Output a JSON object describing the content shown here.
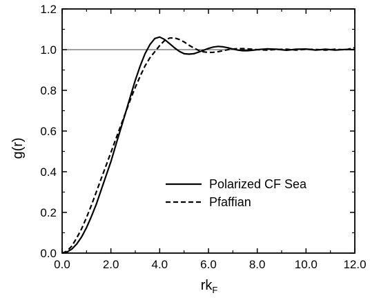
{
  "chart_data": {
    "type": "line",
    "title": "",
    "xlabel_main": "rk",
    "xlabel_sub": "F",
    "ylabel": "g(r)",
    "xlim": [
      0,
      12
    ],
    "ylim": [
      0,
      1.2
    ],
    "x_ticks": [
      "0.0",
      "2.0",
      "4.0",
      "6.0",
      "8.0",
      "10.0",
      "12.0"
    ],
    "y_ticks": [
      "0.0",
      "0.2",
      "0.4",
      "0.6",
      "0.8",
      "1.0",
      "1.2"
    ],
    "reference_line": 1.0,
    "grid": false,
    "legend_position": "center-right",
    "series": [
      {
        "name": "Polarized CF Sea",
        "style": "solid",
        "x": [
          0,
          0.2,
          0.4,
          0.6,
          0.8,
          1.0,
          1.2,
          1.4,
          1.6,
          1.8,
          2.0,
          2.2,
          2.4,
          2.6,
          2.8,
          3.0,
          3.2,
          3.4,
          3.6,
          3.8,
          4.0,
          4.2,
          4.4,
          4.6,
          4.8,
          5.0,
          5.2,
          5.4,
          5.6,
          5.8,
          6.0,
          6.2,
          6.4,
          6.6,
          6.8,
          7.0,
          7.2,
          7.4,
          7.6,
          7.8,
          8.0,
          8.4,
          8.8,
          9.2,
          9.6,
          10.0,
          10.4,
          10.8,
          11.2,
          11.6,
          12.0
        ],
        "y": [
          0,
          0.005,
          0.02,
          0.045,
          0.08,
          0.125,
          0.18,
          0.24,
          0.31,
          0.38,
          0.45,
          0.53,
          0.61,
          0.69,
          0.77,
          0.85,
          0.92,
          0.98,
          1.025,
          1.055,
          1.062,
          1.05,
          1.03,
          1.01,
          0.992,
          0.98,
          0.978,
          0.98,
          0.988,
          0.997,
          1.006,
          1.013,
          1.016,
          1.014,
          1.009,
          1.003,
          0.998,
          0.995,
          0.995,
          0.997,
          1.0,
          1.004,
          1.002,
          0.997,
          1.002,
          1.003,
          0.998,
          1.002,
          0.998,
          1.001,
          1.0
        ]
      },
      {
        "name": "Pfaffian",
        "style": "dashed",
        "x": [
          0,
          0.2,
          0.4,
          0.6,
          0.8,
          1.0,
          1.2,
          1.4,
          1.6,
          1.8,
          2.0,
          2.2,
          2.4,
          2.6,
          2.8,
          3.0,
          3.2,
          3.4,
          3.6,
          3.8,
          4.0,
          4.2,
          4.4,
          4.6,
          4.8,
          5.0,
          5.2,
          5.4,
          5.6,
          5.8,
          6.0,
          6.2,
          6.4,
          6.6,
          6.8,
          7.0,
          7.2,
          7.4,
          7.6,
          7.8,
          8.0,
          8.4,
          8.8,
          9.2,
          9.6,
          10.0,
          10.4,
          10.8,
          11.2,
          11.6,
          12.0
        ],
        "y": [
          0,
          0.01,
          0.035,
          0.075,
          0.12,
          0.175,
          0.235,
          0.3,
          0.365,
          0.43,
          0.495,
          0.56,
          0.625,
          0.69,
          0.755,
          0.815,
          0.87,
          0.92,
          0.96,
          0.99,
          1.02,
          1.045,
          1.057,
          1.058,
          1.05,
          1.038,
          1.022,
          1.008,
          0.996,
          0.989,
          0.986,
          0.987,
          0.99,
          0.995,
          1.0,
          1.003,
          1.005,
          1.005,
          1.004,
          1.002,
          1.0,
          0.998,
          1.001,
          1.002,
          0.998,
          1.002,
          1.001,
          0.998,
          1.002,
          0.999,
          1.01
        ]
      }
    ]
  }
}
